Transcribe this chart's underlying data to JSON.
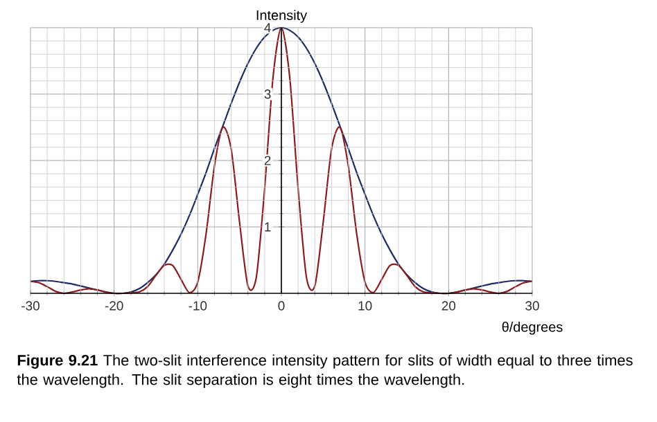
{
  "chart_data": {
    "type": "line",
    "xlabel": "θ/degrees",
    "ylabel": "Intensity",
    "annotations": [
      "**Figure 9.21** The two-slit interference intensity pattern for slits of width equal to three times the wavelength. The slit separation is eight times the wavelength."
    ],
    "x": [
      -30,
      -29,
      -28,
      -27,
      -26,
      -25,
      -24,
      -23,
      -22,
      -21,
      -20,
      -19,
      -18,
      -17,
      -16,
      -15,
      -14,
      -13,
      -12,
      -11,
      -10,
      -9,
      -8,
      -7,
      -6,
      -5,
      -4,
      -3,
      -2,
      -1,
      0,
      1,
      2,
      3,
      4,
      5,
      6,
      7,
      8,
      9,
      10,
      11,
      12,
      13,
      14,
      15,
      16,
      17,
      18,
      19,
      20,
      21,
      22,
      23,
      24,
      25,
      26,
      27,
      28,
      29,
      30
    ],
    "series": [
      {
        "color": "#1c2a66",
        "values": [
          0.18,
          0.19,
          0.19,
          0.18,
          0.16,
          0.14,
          0.11,
          0.08,
          0.05,
          0.02,
          0,
          0,
          0.02,
          0.07,
          0.16,
          0.28,
          0.44,
          0.65,
          0.89,
          1.17,
          1.49,
          1.82,
          2.18,
          2.52,
          2.86,
          3.18,
          3.46,
          3.69,
          3.86,
          3.96,
          4,
          3.96,
          3.86,
          3.69,
          3.46,
          3.18,
          2.86,
          2.52,
          2.18,
          1.82,
          1.49,
          1.17,
          0.89,
          0.65,
          0.44,
          0.28,
          0.16,
          0.07,
          0.02,
          0,
          0,
          0.02,
          0.05,
          0.08,
          0.11,
          0.14,
          0.16,
          0.18,
          0.19,
          0.19,
          0.18
        ]
      },
      {
        "color": "#8e1b1b",
        "values": [
          0.18,
          0.16,
          0.1,
          0.03,
          0,
          0.02,
          0.05,
          0.07,
          0.05,
          0.02,
          0,
          0,
          0.01,
          0.02,
          0.1,
          0.27,
          0.42,
          0.42,
          0.21,
          0.01,
          0.17,
          0.9,
          1.92,
          2.5,
          2.17,
          1.07,
          0.11,
          0.24,
          1.58,
          3.25,
          4,
          3.25,
          1.58,
          0.24,
          0.11,
          1.07,
          2.17,
          2.5,
          1.92,
          0.9,
          0.17,
          0.01,
          0.21,
          0.42,
          0.42,
          0.27,
          0.1,
          0.02,
          0.01,
          0,
          0,
          0.02,
          0.05,
          0.07,
          0.05,
          0.02,
          0,
          0.03,
          0.1,
          0.16,
          0.18
        ]
      }
    ],
    "xlim": [
      -30,
      30
    ],
    "ylim": [
      0,
      4
    ],
    "xticks": [
      -30,
      -20,
      -10,
      0,
      10,
      20,
      30
    ],
    "yticks": [
      1,
      2,
      3,
      4
    ],
    "grid": true,
    "line_style": "solid"
  }
}
